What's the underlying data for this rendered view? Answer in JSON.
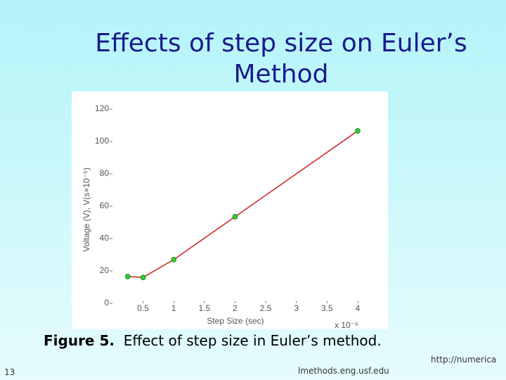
{
  "slide": {
    "title": "Effects of step size on Euler’s Method",
    "caption_label": "Figure 5.",
    "caption_text": "Effect of step size in Euler’s method.",
    "page_number": "13",
    "footer_left": "lmethods.eng.usf.edu",
    "footer_right": "http://numerica"
  },
  "chart_data": {
    "type": "line",
    "xlabel": "Step Size (sec)",
    "ylabel": "Voltage (V), V(s×10⁻⁵)",
    "x_multiplier": "x 10⁻⁵",
    "x": [
      0.25,
      0.5,
      1,
      2,
      4
    ],
    "values": [
      16.5,
      16,
      27,
      53.5,
      106.5
    ],
    "color": "#cc2222",
    "marker_color": "#33cc33",
    "xlim": [
      0,
      4
    ],
    "xticks": [
      0.5,
      1,
      1.5,
      2,
      2.5,
      3,
      3.5,
      4
    ],
    "ylim": [
      0,
      120
    ],
    "yticks": [
      0,
      20,
      40,
      60,
      80,
      100,
      120
    ]
  }
}
